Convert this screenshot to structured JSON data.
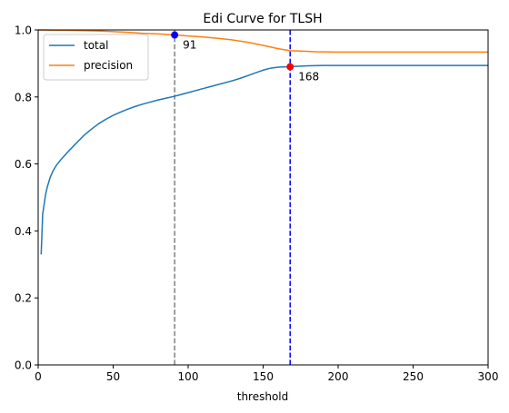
{
  "chart_data": {
    "type": "line",
    "title": "Edi Curve for TLSH",
    "xlabel": "threshold",
    "ylabel": "",
    "xlim": [
      0,
      300
    ],
    "ylim": [
      0,
      1.0
    ],
    "xticks": [
      "0",
      "50",
      "100",
      "150",
      "200",
      "250",
      "300"
    ],
    "yticks": [
      "0.0",
      "0.2",
      "0.4",
      "0.6",
      "0.8",
      "1.0"
    ],
    "grid": false,
    "legend_position": "top-left",
    "series": [
      {
        "name": "total",
        "color": "#1f77b4",
        "x": [
          2,
          3,
          4,
          5,
          6,
          7,
          8,
          10,
          12,
          15,
          20,
          25,
          30,
          35,
          40,
          45,
          50,
          55,
          60,
          65,
          70,
          75,
          80,
          85,
          90,
          95,
          100,
          105,
          110,
          115,
          120,
          125,
          130,
          135,
          140,
          145,
          150,
          155,
          160,
          165,
          168,
          170,
          175,
          180,
          190,
          200,
          220,
          250,
          280,
          300
        ],
        "y": [
          0.33,
          0.45,
          0.48,
          0.51,
          0.53,
          0.545,
          0.56,
          0.58,
          0.595,
          0.612,
          0.637,
          0.66,
          0.683,
          0.702,
          0.719,
          0.733,
          0.745,
          0.755,
          0.764,
          0.772,
          0.779,
          0.785,
          0.791,
          0.796,
          0.801,
          0.807,
          0.813,
          0.819,
          0.825,
          0.831,
          0.837,
          0.843,
          0.849,
          0.856,
          0.864,
          0.872,
          0.88,
          0.886,
          0.889,
          0.89,
          0.89,
          0.891,
          0.892,
          0.893,
          0.894,
          0.894,
          0.894,
          0.894,
          0.894,
          0.894
        ]
      },
      {
        "name": "precision",
        "color": "#ff7f0e",
        "x": [
          0,
          20,
          40,
          60,
          70,
          80,
          91,
          100,
          110,
          120,
          130,
          140,
          150,
          160,
          168,
          175,
          185,
          200,
          230,
          260,
          300
        ],
        "y": [
          1.0,
          0.999,
          0.997,
          0.993,
          0.99,
          0.988,
          0.985,
          0.982,
          0.979,
          0.975,
          0.97,
          0.963,
          0.954,
          0.944,
          0.938,
          0.937,
          0.935,
          0.934,
          0.934,
          0.934,
          0.934
        ]
      }
    ],
    "vlines": [
      {
        "x": 91,
        "color": "#808080",
        "style": "dashed"
      },
      {
        "x": 168,
        "color": "#0000ff",
        "style": "dashed"
      }
    ],
    "markers": [
      {
        "x": 91,
        "y": 0.985,
        "color": "#0000ff",
        "label": "91"
      },
      {
        "x": 168,
        "y": 0.89,
        "color": "#ff0000",
        "label": "168"
      }
    ]
  }
}
